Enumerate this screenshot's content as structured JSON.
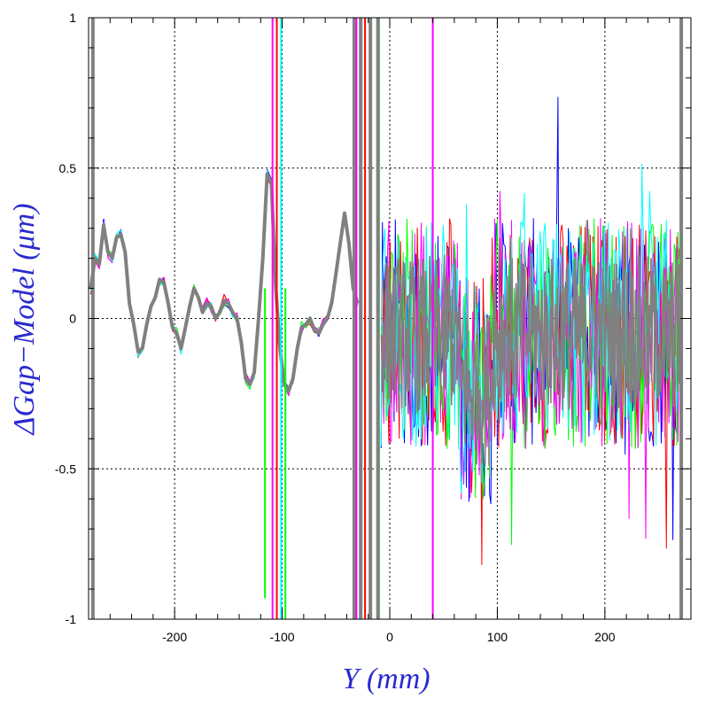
{
  "chart_data": {
    "type": "line",
    "title": "",
    "xlabel": "Y (mm)",
    "ylabel": "ΔGap−Model (μm)",
    "axis_label_color": "#2a2ad0",
    "xlim": [
      -280,
      280
    ],
    "ylim": [
      -1,
      1
    ],
    "x_ticks": [
      -200,
      -100,
      0,
      100,
      200
    ],
    "x_tick_labels": [
      "-200",
      "-100",
      "0",
      "100",
      "200"
    ],
    "y_ticks": [
      -1,
      -0.5,
      0,
      0.5,
      1
    ],
    "y_tick_labels": [
      "-1",
      "-0.5",
      "0",
      "0.5",
      "1"
    ],
    "grid": true,
    "grid_style": "dotted",
    "series_colors": [
      "#0000ff",
      "#ff0000",
      "#00ff00",
      "#ff00ff",
      "#00ffff",
      "#808080"
    ],
    "profile": {
      "x": [
        -278,
        -274,
        -270,
        -266,
        -262,
        -258,
        -254,
        -250,
        -246,
        -242,
        -238,
        -234,
        -230,
        -226,
        -222,
        -218,
        -214,
        -210,
        -206,
        -202,
        -198,
        -194,
        -190,
        -186,
        -182,
        -178,
        -174,
        -170,
        -166,
        -162,
        -158,
        -154,
        -150,
        -146,
        -142,
        -138,
        -134,
        -130,
        -126,
        -122,
        -118,
        -114,
        -110,
        -106,
        -102,
        -98,
        -94,
        -90,
        -86,
        -82,
        -78,
        -74,
        -70,
        -66,
        -62,
        -58,
        -54,
        -50,
        -46,
        -42,
        -38,
        -34,
        -30
      ],
      "y": [
        0.1,
        0.2,
        0.18,
        0.31,
        0.22,
        0.2,
        0.27,
        0.28,
        0.22,
        0.05,
        -0.02,
        -0.11,
        -0.1,
        -0.02,
        0.04,
        0.07,
        0.13,
        0.12,
        0.05,
        -0.03,
        -0.05,
        -0.1,
        -0.03,
        0.04,
        0.1,
        0.07,
        0.02,
        0.05,
        0.04,
        0.0,
        0.02,
        0.06,
        0.05,
        0.02,
        0.0,
        -0.08,
        -0.2,
        -0.22,
        -0.18,
        0.0,
        0.2,
        0.48,
        0.45,
        0.1,
        -0.1,
        -0.22,
        -0.24,
        -0.2,
        -0.1,
        -0.03,
        -0.02,
        0.0,
        -0.04,
        -0.05,
        -0.02,
        0.0,
        0.05,
        0.15,
        0.25,
        0.35,
        0.25,
        0.1,
        0.05
      ]
    },
    "noise_region": {
      "x_range": [
        -8,
        270
      ],
      "y_mean": -0.05,
      "y_spread": 0.35
    },
    "spikes": [
      {
        "x": -276,
        "color": "#808080"
      },
      {
        "x": -109,
        "color": "#ff00ff"
      },
      {
        "x": -105,
        "color": "#ff0000"
      },
      {
        "x": -101,
        "color": "#00ffff"
      },
      {
        "x": -33,
        "color": "#808080"
      },
      {
        "x": -31,
        "color": "#ff00ff"
      },
      {
        "x": -27,
        "color": "#808080"
      },
      {
        "x": -23,
        "color": "#ff0000"
      },
      {
        "x": -18,
        "color": "#808080"
      },
      {
        "x": -10,
        "color": "#00ff00"
      },
      {
        "x": -11,
        "color": "#808080"
      },
      {
        "x": 40,
        "color": "#ff00ff"
      },
      {
        "x": 271,
        "color": "#808080"
      }
    ],
    "downward_spikes": [
      {
        "x": -116,
        "y": -0.93,
        "color": "#00ff00"
      },
      {
        "x": -97,
        "y": -1.0,
        "color": "#00ff00"
      }
    ]
  }
}
